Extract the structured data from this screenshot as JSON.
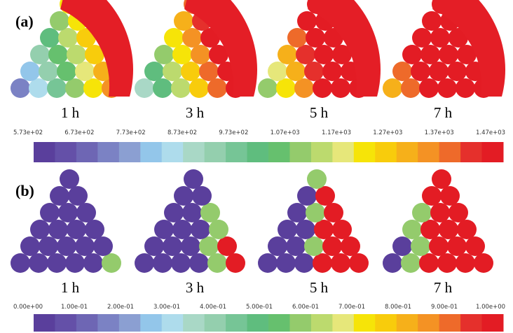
{
  "panels": [
    {
      "label": "(a)",
      "times": [
        "1 h",
        "3 h",
        "5 h",
        "7 h"
      ],
      "colorbar_ticks": [
        "5.73e+02",
        "6.73e+02",
        "7.73e+02",
        "8.73e+02",
        "9.73e+02",
        "1.07e+03",
        "1.17e+03",
        "1.27e+03",
        "1.37e+03",
        "1.47e+03"
      ]
    },
    {
      "label": "(b)",
      "times": [
        "1 h",
        "3 h",
        "5 h",
        "7 h"
      ],
      "colorbar_ticks": [
        "0.00e+00",
        "1.00e-01",
        "2.00e-01",
        "3.00e-01",
        "4.00e-01",
        "5.00e-01",
        "6.00e-01",
        "7.00e-01",
        "8.00e-01",
        "9.00e-01",
        "1.00e+00"
      ]
    }
  ]
}
